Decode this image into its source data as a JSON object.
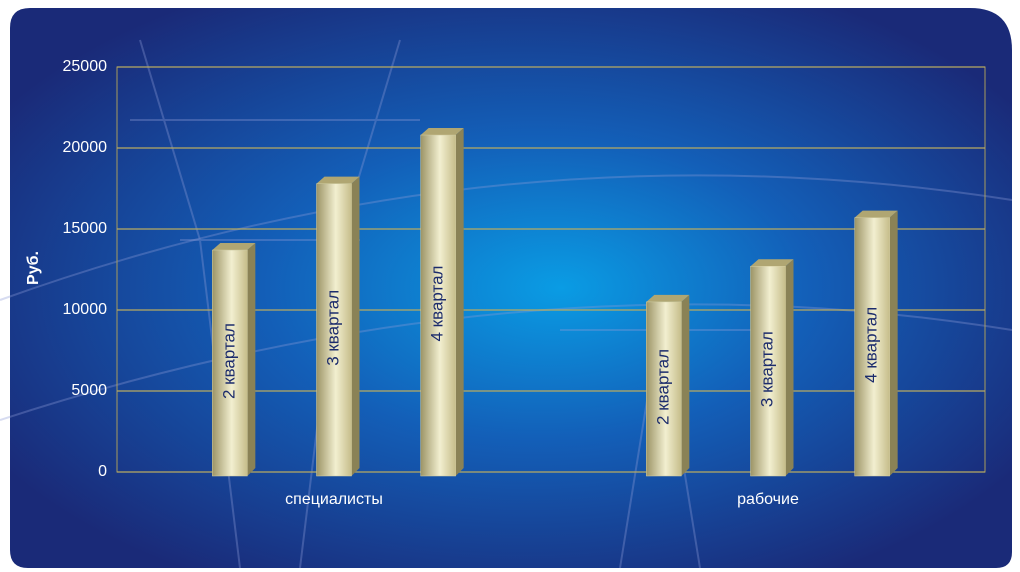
{
  "chart_data": {
    "type": "bar",
    "y_label": "Руб.",
    "categories": [
      "специалисты",
      "рабочие"
    ],
    "series": [
      {
        "name": "2 квартал",
        "color": "#d8d0a0",
        "values": [
          13700,
          10500
        ]
      },
      {
        "name": "3 квартал",
        "color": "#d8d0a0",
        "values": [
          17800,
          12700
        ]
      },
      {
        "name": "4 квартал",
        "color": "#d8d0a0",
        "values": [
          20800,
          15700
        ]
      }
    ],
    "ylim": [
      0,
      25000
    ],
    "yticks": [
      0,
      5000,
      10000,
      15000,
      20000,
      25000
    ],
    "grid": true
  }
}
